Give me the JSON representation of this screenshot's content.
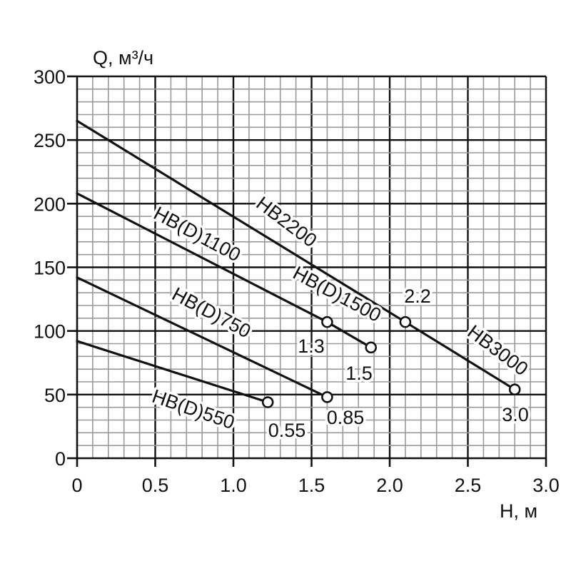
{
  "chart_data": {
    "type": "line",
    "xlabel": "H, м",
    "ylabel": "Q, м³/ч",
    "xlim": [
      0,
      3.0
    ],
    "ylim": [
      0,
      300
    ],
    "xticks": [
      "0",
      "0.5",
      "1.0",
      "1.5",
      "2.0",
      "2.5",
      "3.0"
    ],
    "yticks": [
      "0",
      "50",
      "100",
      "150",
      "200",
      "250",
      "300"
    ],
    "grid": true,
    "series": [
      {
        "name": "HB(D)550",
        "power": "0.55",
        "x": [
          0,
          1.22
        ],
        "y": [
          92,
          44
        ]
      },
      {
        "name": "HB(D)750",
        "power": "0.85",
        "x": [
          0,
          1.6
        ],
        "y": [
          142,
          48
        ]
      },
      {
        "name": "HB(D)1100",
        "power": "1.3",
        "x": [
          0,
          1.6
        ],
        "y": [
          208,
          107
        ]
      },
      {
        "name": "HB(D)1500",
        "power": "1.5",
        "x": [
          1.6,
          1.88
        ],
        "y": [
          107,
          87
        ]
      },
      {
        "name": "HB2200",
        "power": "2.2",
        "x": [
          0,
          2.1
        ],
        "y": [
          265,
          107
        ]
      },
      {
        "name": "HB3000",
        "power": "3.0",
        "x": [
          2.1,
          2.8
        ],
        "y": [
          107,
          54
        ]
      }
    ]
  }
}
